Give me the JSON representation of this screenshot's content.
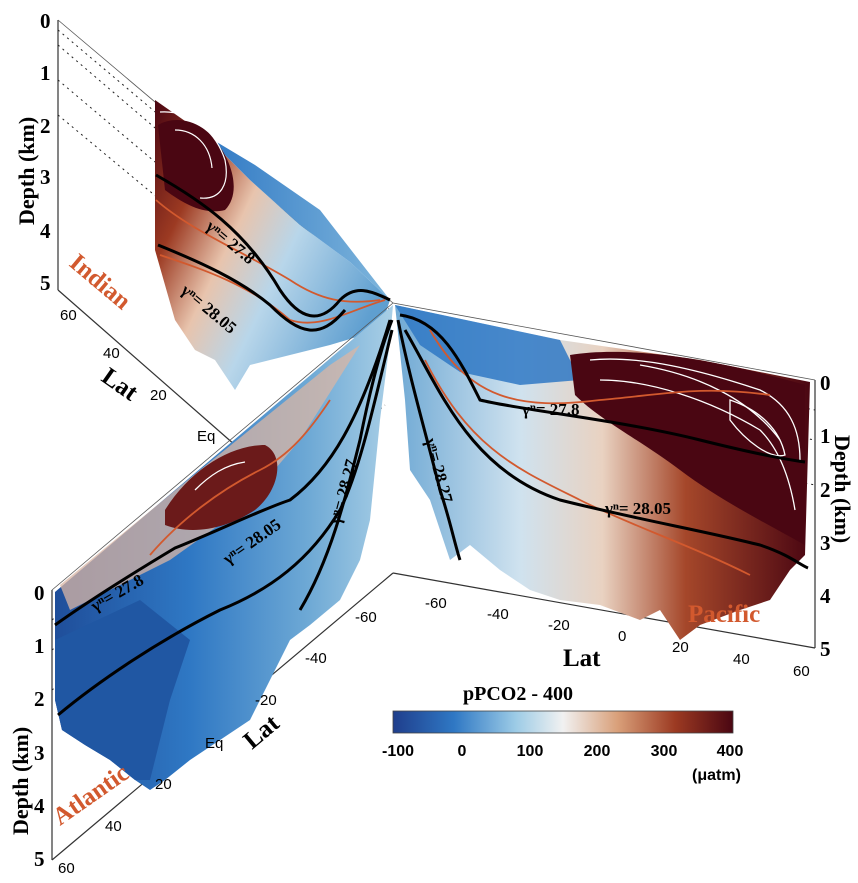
{
  "chart_data": {
    "type": "heatmap",
    "title": "",
    "variable": "pPCO2 - 400",
    "colorbar": {
      "label": "pPCO2 - 400",
      "unit": "(μatm)",
      "range": [
        -100,
        400
      ],
      "ticks": [
        "-100",
        "0",
        "100",
        "200",
        "300",
        "400"
      ],
      "colors": [
        "#1f3e8c",
        "#2f78c4",
        "#7fb6dc",
        "#f1f1f1",
        "#d9a07a",
        "#9c3a22",
        "#4a0612"
      ]
    },
    "panels": [
      {
        "name": "Indian",
        "color": "#d2592e",
        "depth_label": "Depth (km)",
        "depth_ticks": [
          "0",
          "1",
          "2",
          "3",
          "4",
          "5"
        ],
        "lat_label": "Lat",
        "lat_ticks": [
          "60",
          "40",
          "20",
          "Eq"
        ],
        "isopycnals": [
          "γⁿ= 27.8",
          "γⁿ= 28.05"
        ]
      },
      {
        "name": "Pacific",
        "color": "#d2592e",
        "depth_label": "Depth (km)",
        "depth_ticks": [
          "0",
          "1",
          "2",
          "3",
          "4",
          "5"
        ],
        "lat_label": "Lat",
        "lat_ticks": [
          "-60",
          "-40",
          "-20",
          "0",
          "20",
          "40",
          "60"
        ],
        "isopycnals": [
          "γⁿ= 27.8",
          "γⁿ= 28.05",
          "γⁿ= 28.27"
        ]
      },
      {
        "name": "Atlantic",
        "color": "#d2592e",
        "depth_label": "Depth (km)",
        "depth_ticks": [
          "0",
          "1",
          "2",
          "3",
          "4",
          "5"
        ],
        "lat_label": "Lat",
        "lat_ticks": [
          "-60",
          "-40",
          "-20",
          "Eq",
          "20",
          "40",
          "60"
        ],
        "isopycnals": [
          "γⁿ= 27.8",
          "γⁿ= 28.05",
          "γⁿ= 28.27"
        ]
      }
    ]
  }
}
